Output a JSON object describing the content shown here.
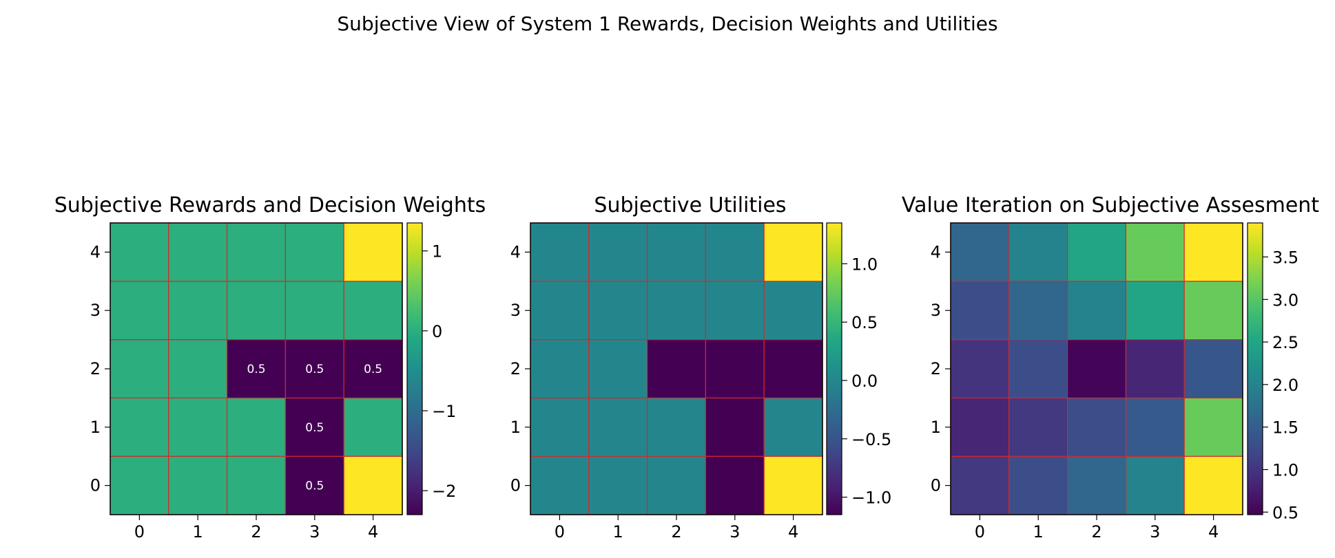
{
  "figure": {
    "title": "Subjective View of System 1 Rewards, Decision Weights and Utilities"
  },
  "chart_data": [
    {
      "type": "heatmap",
      "title": "Subjective Rewards and Decision Weights",
      "x_ticks": [
        "0",
        "1",
        "2",
        "3",
        "4"
      ],
      "y_ticks": [
        "0",
        "1",
        "2",
        "3",
        "4"
      ],
      "rows_bottom_to_top": [
        [
          0,
          0,
          0,
          -2.3,
          1.35
        ],
        [
          0,
          0,
          0,
          -2.3,
          0
        ],
        [
          0,
          0,
          -2.3,
          -2.3,
          -2.3
        ],
        [
          0,
          0,
          0,
          0,
          0
        ],
        [
          0,
          0,
          0,
          0,
          1.35
        ]
      ],
      "annotations": [
        {
          "row": 0,
          "col": 3,
          "text": "0.5"
        },
        {
          "row": 1,
          "col": 3,
          "text": "0.5"
        },
        {
          "row": 2,
          "col": 2,
          "text": "0.5"
        },
        {
          "row": 2,
          "col": 3,
          "text": "0.5"
        },
        {
          "row": 2,
          "col": 4,
          "text": "0.5"
        }
      ],
      "colorbar": {
        "min": -2.3,
        "max": 1.35,
        "ticks": [
          1,
          0,
          -1,
          -2
        ],
        "tick_labels": [
          "1",
          "0",
          "−1",
          "−2"
        ]
      },
      "colormap": "viridis",
      "grid_color": "#d62728"
    },
    {
      "type": "heatmap",
      "title": "Subjective Utilities",
      "x_ticks": [
        "0",
        "1",
        "2",
        "3",
        "4"
      ],
      "y_ticks": [
        "0",
        "1",
        "2",
        "3",
        "4"
      ],
      "rows_bottom_to_top": [
        [
          0,
          0,
          0,
          -1.15,
          1.35
        ],
        [
          0,
          0,
          0,
          -1.15,
          0
        ],
        [
          0,
          0,
          -1.15,
          -1.15,
          -1.15
        ],
        [
          0,
          0,
          0,
          0,
          0
        ],
        [
          0,
          0,
          0,
          0,
          1.35
        ]
      ],
      "annotations": [],
      "colorbar": {
        "min": -1.15,
        "max": 1.35,
        "ticks": [
          1.0,
          0.5,
          0.0,
          -0.5,
          -1.0
        ],
        "tick_labels": [
          "1.0",
          "0.5",
          "0.0",
          "−0.5",
          "−1.0"
        ]
      },
      "colormap": "viridis",
      "grid_color": "#d62728"
    },
    {
      "type": "heatmap",
      "title": "Value Iteration on Subjective Assesment",
      "x_ticks": [
        "0",
        "1",
        "2",
        "3",
        "4"
      ],
      "y_ticks": [
        "0",
        "1",
        "2",
        "3",
        "4"
      ],
      "rows_bottom_to_top": [
        [
          1.05,
          1.3,
          1.6,
          2.0,
          3.9
        ],
        [
          0.85,
          1.05,
          1.3,
          1.45,
          3.1
        ],
        [
          1.0,
          1.3,
          0.5,
          0.85,
          1.4
        ],
        [
          1.3,
          1.6,
          2.0,
          2.5,
          3.1
        ],
        [
          1.6,
          2.0,
          2.5,
          3.1,
          3.9
        ]
      ],
      "annotations": [],
      "colorbar": {
        "min": 0.47,
        "max": 3.9,
        "ticks": [
          3.5,
          3.0,
          2.5,
          2.0,
          1.5,
          1.0,
          0.5
        ],
        "tick_labels": [
          "3.5",
          "3.0",
          "2.5",
          "2.0",
          "1.5",
          "1.0",
          "0.5"
        ]
      },
      "colormap": "viridis",
      "grid_color": "#d62728"
    }
  ]
}
